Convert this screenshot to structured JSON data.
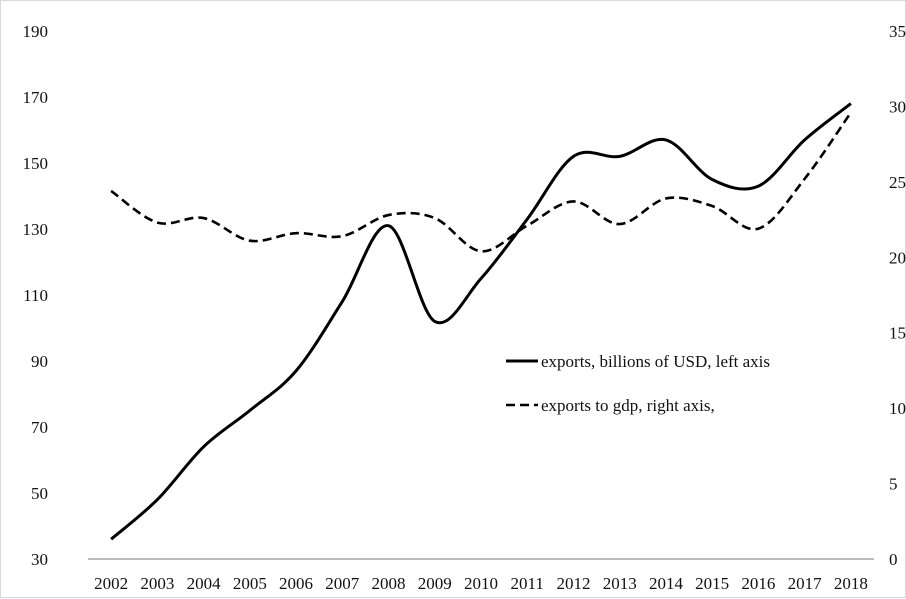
{
  "chart_data": {
    "type": "line",
    "x": [
      "2002",
      "2003",
      "2004",
      "2005",
      "2006",
      "2007",
      "2008",
      "2009",
      "2010",
      "2011",
      "2012",
      "2013",
      "2014",
      "2015",
      "2016",
      "2017",
      "2018"
    ],
    "y_left_ticks": [
      "30",
      "50",
      "70",
      "90",
      "110",
      "130",
      "150",
      "170",
      "190"
    ],
    "y_right_ticks": [
      "0",
      "5",
      "10",
      "15",
      "20",
      "25",
      "30",
      "35"
    ],
    "ylim_left": [
      30,
      190
    ],
    "ylim_right": [
      0,
      35
    ],
    "grid": false,
    "legend_position": "right-center",
    "series": [
      {
        "name": "exports, billions of USD, left axis",
        "axis": "left",
        "style": "solid",
        "color": "#000000",
        "values": [
          36,
          48,
          64,
          75,
          87,
          108,
          131,
          102,
          115,
          133,
          152,
          152,
          157,
          145,
          143,
          157,
          168
        ]
      },
      {
        "name": "exports to gdp, right axis,",
        "axis": "right",
        "style": "dashed",
        "color": "#000000",
        "values": [
          24.4,
          22.3,
          22.6,
          21.1,
          21.6,
          21.4,
          22.8,
          22.6,
          20.4,
          22.1,
          23.7,
          22.2,
          23.9,
          23.4,
          21.9,
          25.2,
          29.6
        ]
      }
    ]
  }
}
